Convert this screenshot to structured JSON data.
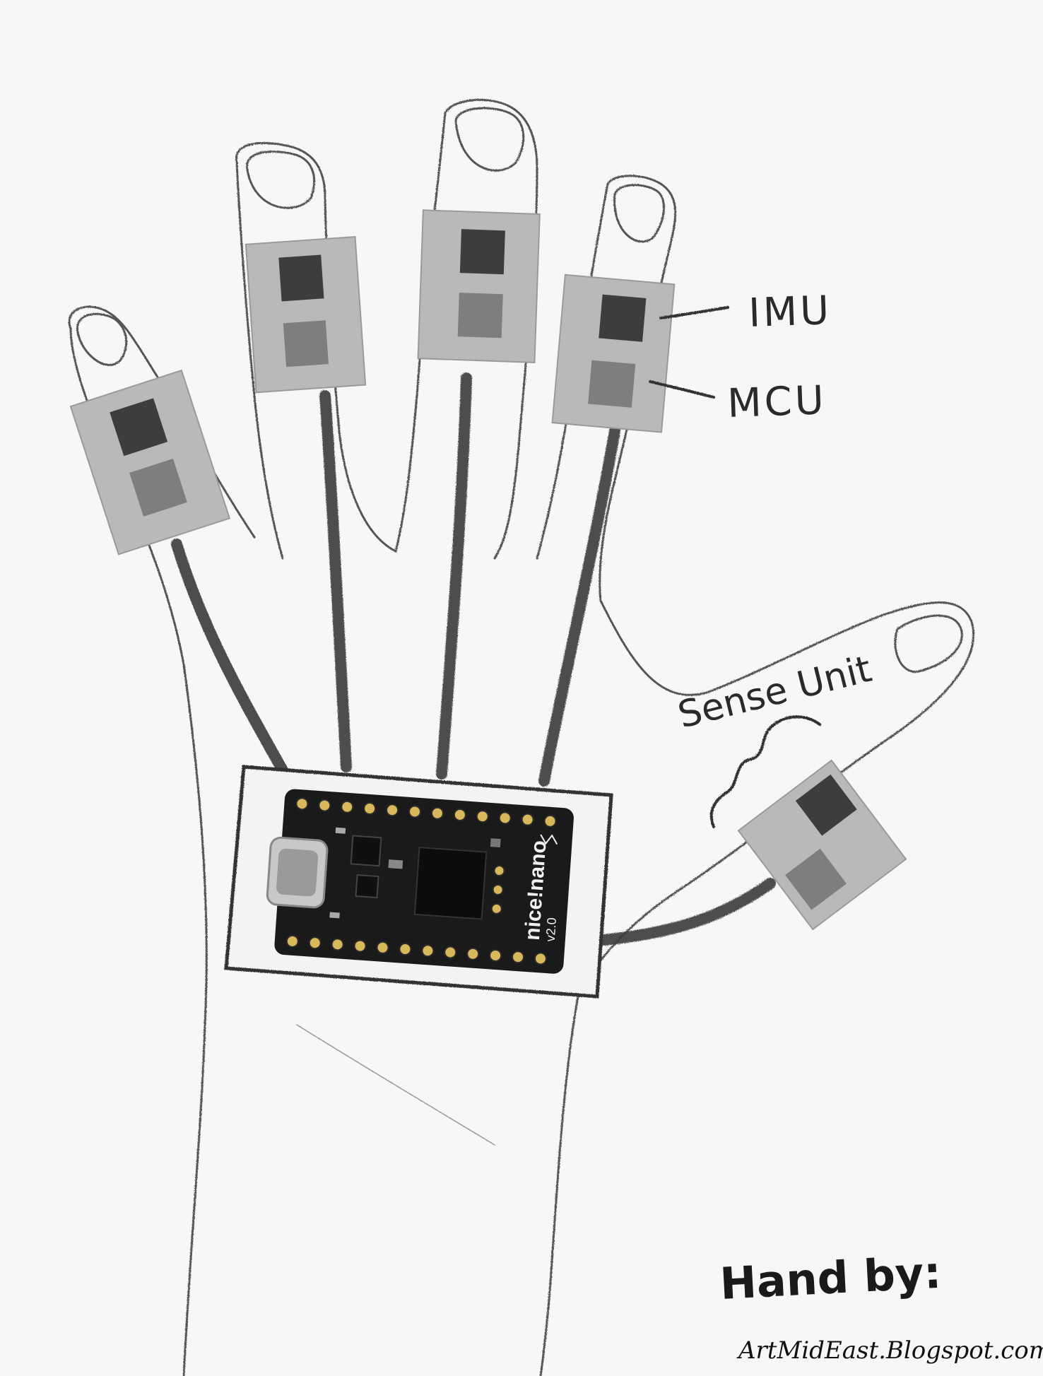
{
  "labels": {
    "imu": "IMU",
    "mcu": "MCU",
    "sense_unit": "Sense Unit"
  },
  "board": {
    "brand": "nice!nano",
    "version": "v2.0"
  },
  "credit": {
    "prefix": "Hand by:",
    "site": "ArtMidEast.Blogspot.com"
  },
  "colors": {
    "paper": "#f7f7f7",
    "pencil": "#4a4a4a",
    "unit_plate": "#b9b9b9",
    "imu_chip": "#3d3d3d",
    "mcu_chip": "#7e7e7e",
    "board": "#1a1a1a",
    "pin_gold": "#d8b85a"
  }
}
